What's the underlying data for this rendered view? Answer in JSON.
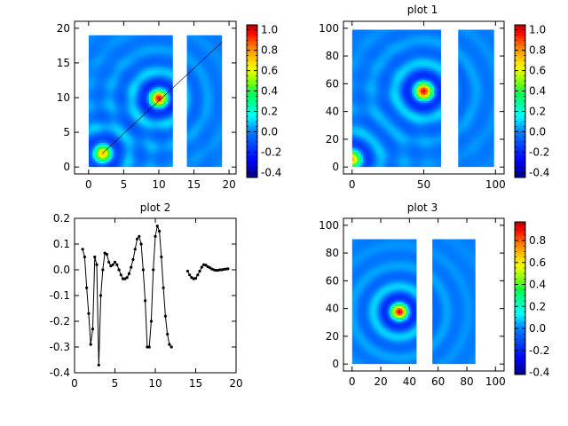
{
  "chart_data": [
    {
      "type": "heatmap",
      "title": "",
      "xlabel": "",
      "ylabel": "",
      "xlim": [
        -2,
        21
      ],
      "ylim": [
        -1,
        21
      ],
      "xticks": [
        0,
        5,
        10,
        15,
        20
      ],
      "yticks": [
        0,
        5,
        10,
        15,
        20
      ],
      "x_range": [
        0,
        19
      ],
      "y_range": [
        0,
        19
      ],
      "gap_x": [
        12,
        14
      ],
      "peaks": [
        {
          "x": 10,
          "y": 10,
          "value": 1.0
        },
        {
          "x": 2,
          "y": 2,
          "value": 0.75
        }
      ],
      "cut_line": {
        "from": [
          2,
          2
        ],
        "to": [
          19,
          18
        ]
      },
      "colorbar": {
        "min": -0.45,
        "max": 1.05,
        "ticks": [
          1.0,
          0.8,
          0.6,
          0.4,
          0.2,
          0.0,
          -0.2,
          -0.4
        ]
      },
      "colors": [
        "#00008c",
        "#0000ff",
        "#00ffff",
        "#00ff00",
        "#ffff00",
        "#ff0000",
        "#b40000"
      ]
    },
    {
      "type": "heatmap",
      "title": "plot 1",
      "xlabel": "",
      "ylabel": "",
      "xlim": [
        -6,
        106
      ],
      "ylim": [
        -5,
        105
      ],
      "xticks": [
        0,
        50,
        100
      ],
      "yticks": [
        0,
        20,
        40,
        60,
        80,
        100
      ],
      "x_range": [
        0,
        99
      ],
      "y_range": [
        0,
        99
      ],
      "gap_x": [
        62,
        74
      ],
      "peaks": [
        {
          "x": 50,
          "y": 55,
          "value": 1.0
        },
        {
          "x": 0,
          "y": 6,
          "value": 0.75
        }
      ],
      "colorbar": {
        "min": -0.45,
        "max": 1.05,
        "ticks": [
          1.0,
          0.8,
          0.6,
          0.4,
          0.2,
          0.0,
          -0.2,
          -0.4
        ]
      }
    },
    {
      "type": "line",
      "title": "plot 2",
      "xlabel": "",
      "ylabel": "",
      "xlim": [
        0,
        20
      ],
      "ylim": [
        -0.4,
        0.2
      ],
      "xticks": [
        0,
        5,
        10,
        15,
        20
      ],
      "yticks": [
        0.2,
        0.1,
        0.0,
        -0.1,
        -0.2,
        -0.3,
        -0.4
      ],
      "series": [
        {
          "x": [
            1.0,
            1.25,
            1.5,
            1.75,
            2.0,
            2.25,
            2.5,
            2.75,
            3.0,
            3.25,
            3.5,
            3.75,
            4.0,
            4.25,
            4.5,
            4.75,
            5.0,
            5.25,
            5.5,
            5.75,
            6.0,
            6.25,
            6.5,
            6.75,
            7.0,
            7.25,
            7.5,
            7.75,
            8.0,
            8.25,
            8.5,
            8.75,
            9.0,
            9.25,
            9.5,
            9.75,
            10.0,
            10.25,
            10.5,
            10.75,
            11.0,
            11.25,
            11.5,
            11.75,
            12.0
          ],
          "y": [
            0.08,
            0.05,
            -0.07,
            -0.17,
            -0.29,
            -0.23,
            0.05,
            0.02,
            -0.37,
            -0.1,
            0.0,
            0.065,
            0.06,
            0.03,
            0.015,
            0.02,
            0.03,
            0.02,
            0.0,
            -0.02,
            -0.035,
            -0.035,
            -0.03,
            -0.015,
            0.01,
            0.04,
            0.08,
            0.12,
            0.13,
            0.1,
            0.0,
            -0.12,
            -0.3,
            -0.3,
            -0.2,
            0.0,
            0.13,
            0.17,
            0.15,
            0.05,
            -0.07,
            -0.18,
            -0.25,
            -0.29,
            -0.3
          ]
        },
        {
          "x": [
            14.0,
            14.25,
            14.5,
            14.75,
            15.0,
            15.25,
            15.5,
            15.75,
            16.0,
            16.25,
            16.5,
            16.75,
            17.0,
            17.25,
            17.5,
            17.75,
            18.0,
            18.25,
            18.5,
            18.75,
            19.0
          ],
          "y": [
            -0.005,
            -0.02,
            -0.03,
            -0.035,
            -0.033,
            -0.02,
            -0.005,
            0.01,
            0.02,
            0.018,
            0.012,
            0.008,
            0.003,
            0.0,
            -0.002,
            -0.002,
            0.0,
            0.0,
            0.002,
            0.003,
            0.004
          ]
        }
      ]
    },
    {
      "type": "heatmap",
      "title": "plot 3",
      "xlabel": "",
      "ylabel": "",
      "xlim": [
        -6,
        106
      ],
      "ylim": [
        -5,
        105
      ],
      "xticks": [
        0,
        20,
        40,
        60,
        80,
        100
      ],
      "yticks": [
        0,
        20,
        40,
        60,
        80,
        100
      ],
      "x_range": [
        0,
        86
      ],
      "y_range": [
        0,
        90
      ],
      "gap_x": [
        45,
        56
      ],
      "peaks": [
        {
          "x": 33,
          "y": 38,
          "value": 0.95
        }
      ],
      "colorbar": {
        "min": -0.42,
        "max": 0.97,
        "ticks": [
          0.8,
          0.6,
          0.4,
          0.2,
          0.0,
          -0.2,
          -0.4
        ]
      }
    }
  ]
}
